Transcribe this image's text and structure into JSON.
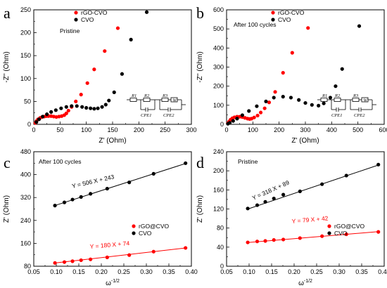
{
  "chart_data": [
    {
      "panel": "a",
      "type": "scatter",
      "annotation": "Pristine",
      "xlabel": "Z' (Ohm)",
      "ylabel": "-Z'' (Ohm)",
      "xlim": [
        0,
        300
      ],
      "ylim": [
        0,
        250
      ],
      "xticks": [
        0,
        50,
        100,
        150,
        200,
        250,
        300
      ],
      "yticks": [
        0,
        50,
        100,
        150,
        200,
        250
      ],
      "legend": [
        "rGO-CVO",
        "CVO"
      ],
      "legend_position": "top-center",
      "circuit": {
        "labels": [
          "R1",
          "R2",
          "CPE1",
          "R3",
          "W",
          "CPE2"
        ]
      },
      "series": [
        {
          "name": "rGO-CVO",
          "color": "#ff0000",
          "x": [
            3,
            5,
            8,
            12,
            16,
            20,
            24,
            28,
            33,
            38,
            43,
            48,
            53,
            58,
            62,
            66,
            72,
            80,
            90,
            102,
            115,
            135,
            160
          ],
          "y": [
            3,
            7,
            11,
            14,
            16,
            17,
            18,
            18,
            18,
            17,
            16,
            17,
            18,
            20,
            24,
            30,
            38,
            50,
            65,
            90,
            120,
            160,
            210
          ]
        },
        {
          "name": "CVO",
          "color": "#000000",
          "x": [
            5,
            10,
            17,
            25,
            33,
            42,
            52,
            62,
            72,
            82,
            92,
            100,
            108,
            115,
            122,
            130,
            137,
            143,
            153,
            168,
            185,
            215
          ],
          "y": [
            5,
            11,
            17,
            22,
            27,
            31,
            35,
            38,
            40,
            40,
            38,
            36,
            35,
            34,
            35,
            38,
            43,
            52,
            70,
            110,
            185,
            245
          ]
        }
      ]
    },
    {
      "panel": "b",
      "type": "scatter",
      "annotation": "After 100 cycles",
      "xlabel": "Z' (Ohm)",
      "ylabel": "-Z'' (Ohm)",
      "xlim": [
        0,
        600
      ],
      "ylim": [
        0,
        600
      ],
      "xticks": [
        0,
        100,
        200,
        300,
        400,
        500,
        600
      ],
      "yticks": [
        0,
        100,
        200,
        300,
        400,
        500,
        600
      ],
      "legend": [
        "rGO-CVO",
        "CVO"
      ],
      "legend_position": "top-center",
      "circuit": {
        "labels": [
          "R1",
          "R2",
          "CPE1",
          "R3",
          "W",
          "CPE2"
        ]
      },
      "series": [
        {
          "name": "rGO-CVO",
          "color": "#ff0000",
          "x": [
            5,
            10,
            15,
            22,
            30,
            40,
            50,
            60,
            70,
            80,
            88,
            95,
            105,
            118,
            130,
            145,
            162,
            185,
            215,
            250,
            310
          ],
          "y": [
            6,
            15,
            24,
            32,
            37,
            40,
            40,
            38,
            34,
            30,
            28,
            30,
            36,
            46,
            62,
            84,
            115,
            170,
            270,
            375,
            505
          ]
        },
        {
          "name": "CVO",
          "color": "#000000",
          "x": [
            5,
            12,
            25,
            40,
            60,
            85,
            115,
            150,
            180,
            215,
            245,
            275,
            300,
            325,
            350,
            370,
            395,
            415,
            440,
            505
          ],
          "y": [
            3,
            8,
            18,
            30,
            48,
            70,
            95,
            120,
            140,
            145,
            140,
            128,
            112,
            102,
            98,
            110,
            140,
            200,
            290,
            515
          ]
        }
      ]
    },
    {
      "panel": "c",
      "type": "scatter",
      "annotation": "After 100 cycles",
      "xlabel": "ω-1/2",
      "ylabel": "Z' (Ohm)",
      "xlim": [
        0.05,
        0.4
      ],
      "ylim": [
        80,
        480
      ],
      "xticks": [
        0.05,
        0.1,
        0.15,
        0.2,
        0.25,
        0.3,
        0.35,
        0.4
      ],
      "yticks": [
        80,
        160,
        240,
        320,
        400,
        480
      ],
      "legend": [
        "rGO@CVO",
        "CVO"
      ],
      "legend_position": "center-right",
      "series": [
        {
          "name": "rGO@CVO",
          "color": "#ff0000",
          "x": [
            0.097,
            0.118,
            0.136,
            0.155,
            0.176,
            0.213,
            0.262,
            0.316,
            0.387
          ],
          "y": [
            91.5,
            94.5,
            97.5,
            101,
            104,
            111,
            119,
            131,
            144
          ],
          "fit": {
            "label": "Y = 180 X + 74",
            "slope": 180,
            "intercept": 74,
            "x_range": [
              0.097,
              0.387
            ]
          }
        },
        {
          "name": "CVO",
          "color": "#000000",
          "x": [
            0.097,
            0.118,
            0.136,
            0.155,
            0.176,
            0.213,
            0.262,
            0.316,
            0.387
          ],
          "y": [
            292,
            303,
            313,
            322,
            333,
            351,
            373,
            403,
            440
          ],
          "fit": {
            "label": "Y = 506 X + 243",
            "slope": 506,
            "intercept": 243,
            "x_range": [
              0.097,
              0.387
            ]
          }
        }
      ]
    },
    {
      "panel": "d",
      "type": "scatter",
      "annotation": "Pristine",
      "xlabel": "ω-1/2",
      "ylabel": "Z' (Ohm)",
      "xlim": [
        0.05,
        0.4
      ],
      "ylim": [
        0,
        240
      ],
      "xticks": [
        0.05,
        0.1,
        0.15,
        0.2,
        0.25,
        0.3,
        0.35,
        0.4
      ],
      "yticks": [
        0,
        40,
        80,
        120,
        160,
        200,
        240
      ],
      "legend": [
        "rGO@CVO",
        "CVO"
      ],
      "legend_position": "center-right",
      "series": [
        {
          "name": "rGO@CVO",
          "color": "#ff0000",
          "x": [
            0.097,
            0.118,
            0.136,
            0.155,
            0.176,
            0.213,
            0.262,
            0.316,
            0.387
          ],
          "y": [
            50,
            52,
            53,
            55,
            56,
            59,
            63,
            67,
            72
          ],
          "fit": {
            "label": "Y = 79 X + 42",
            "slope": 79,
            "intercept": 42,
            "x_range": [
              0.097,
              0.387
            ]
          }
        },
        {
          "name": "CVO",
          "color": "#000000",
          "x": [
            0.097,
            0.118,
            0.136,
            0.155,
            0.176,
            0.213,
            0.262,
            0.316,
            0.387
          ],
          "y": [
            121,
            128,
            135,
            142,
            150,
            157,
            172,
            190,
            213
          ],
          "fit": {
            "label": "Y = 318 X + 89",
            "slope": 318,
            "intercept": 89,
            "x_range": [
              0.097,
              0.387
            ]
          }
        }
      ]
    }
  ]
}
